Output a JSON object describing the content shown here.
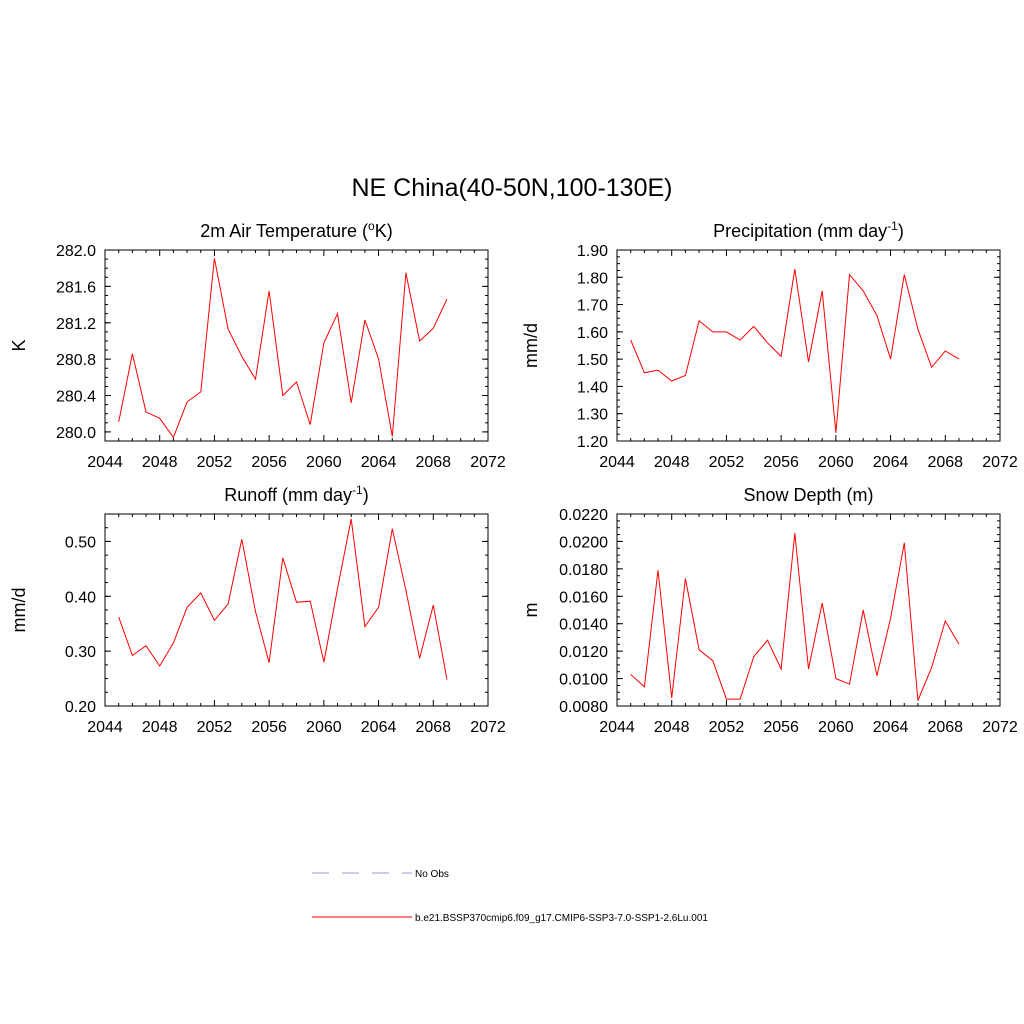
{
  "figure": {
    "title": "NE China(40-50N,100-130E)"
  },
  "colors": {
    "series": "#ff0000",
    "obs": "#9999dd",
    "axis": "#000000"
  },
  "legend": {
    "entries": [
      {
        "label": "No Obs",
        "style": "dashed",
        "color": "#9999dd"
      },
      {
        "label": "b.e21.BSSP370cmip6.f09_g17.CMIP6-SSP3-7.0-SSP1-2.6Lu.001",
        "style": "solid",
        "color": "#ff0000"
      }
    ]
  },
  "chart_data": [
    {
      "type": "line",
      "title_parts": [
        "2m Air Temperature (",
        "o",
        "K)"
      ],
      "title_style": "sup",
      "ylabel": "K",
      "xlim": [
        2044,
        2072
      ],
      "xticks": [
        2044,
        2048,
        2052,
        2056,
        2060,
        2064,
        2068,
        2072
      ],
      "ylim": [
        279.9,
        282.0
      ],
      "yticks": [
        280.0,
        280.4,
        280.8,
        281.2,
        281.6,
        282.0
      ],
      "ytick_labels": [
        "280.0",
        "280.4",
        "280.8",
        "281.2",
        "281.6",
        "282.0"
      ],
      "yminor": 0.1,
      "x": [
        2045,
        2046,
        2047,
        2048,
        2049,
        2050,
        2051,
        2052,
        2053,
        2054,
        2055,
        2056,
        2057,
        2058,
        2059,
        2060,
        2061,
        2062,
        2063,
        2064,
        2065,
        2066,
        2067,
        2068,
        2069
      ],
      "values": [
        280.11,
        280.86,
        280.22,
        280.15,
        279.94,
        280.33,
        280.44,
        281.91,
        281.13,
        280.83,
        280.58,
        281.55,
        280.4,
        280.55,
        280.08,
        280.98,
        281.3,
        280.32,
        281.23,
        280.8,
        279.95,
        281.75,
        281.0,
        281.14,
        281.46
      ]
    },
    {
      "type": "line",
      "title_parts": [
        "Precipitation (mm day",
        "-1",
        ")"
      ],
      "title_style": "sup",
      "ylabel": "mm/d",
      "xlim": [
        2044,
        2072
      ],
      "xticks": [
        2044,
        2048,
        2052,
        2056,
        2060,
        2064,
        2068,
        2072
      ],
      "ylim": [
        1.2,
        1.9
      ],
      "yticks": [
        1.2,
        1.3,
        1.4,
        1.5,
        1.6,
        1.7,
        1.8,
        1.9
      ],
      "ytick_labels": [
        "1.20",
        "1.30",
        "1.40",
        "1.50",
        "1.60",
        "1.70",
        "1.80",
        "1.90"
      ],
      "yminor": 0.025,
      "x": [
        2045,
        2046,
        2047,
        2048,
        2049,
        2050,
        2051,
        2052,
        2053,
        2054,
        2055,
        2056,
        2057,
        2058,
        2059,
        2060,
        2061,
        2062,
        2063,
        2064,
        2065,
        2066,
        2067,
        2068,
        2069
      ],
      "values": [
        1.57,
        1.45,
        1.46,
        1.42,
        1.44,
        1.64,
        1.6,
        1.6,
        1.57,
        1.62,
        1.56,
        1.51,
        1.83,
        1.49,
        1.75,
        1.23,
        1.81,
        1.75,
        1.66,
        1.5,
        1.81,
        1.61,
        1.47,
        1.53,
        1.5
      ]
    },
    {
      "type": "line",
      "title_parts": [
        "Runoff (mm day",
        "-1",
        ")"
      ],
      "title_style": "sup",
      "ylabel": "mm/d",
      "xlim": [
        2044,
        2072
      ],
      "xticks": [
        2044,
        2048,
        2052,
        2056,
        2060,
        2064,
        2068,
        2072
      ],
      "ylim": [
        0.2,
        0.55
      ],
      "yticks": [
        0.2,
        0.3,
        0.4,
        0.5
      ],
      "ytick_labels": [
        "0.20",
        "0.30",
        "0.40",
        "0.50"
      ],
      "yminor": 0.025,
      "x": [
        2045,
        2046,
        2047,
        2048,
        2049,
        2050,
        2051,
        2052,
        2053,
        2054,
        2055,
        2056,
        2057,
        2058,
        2059,
        2060,
        2061,
        2062,
        2063,
        2064,
        2065,
        2066,
        2067,
        2068,
        2069
      ],
      "values": [
        0.362,
        0.292,
        0.31,
        0.273,
        0.315,
        0.38,
        0.406,
        0.356,
        0.386,
        0.504,
        0.372,
        0.279,
        0.47,
        0.389,
        0.391,
        0.28,
        0.414,
        0.541,
        0.345,
        0.38,
        0.523,
        0.411,
        0.287,
        0.384,
        0.248
      ]
    },
    {
      "type": "line",
      "title_parts": [
        "Snow Depth (m)"
      ],
      "title_style": "plain",
      "ylabel": "m",
      "xlim": [
        2044,
        2072
      ],
      "xticks": [
        2044,
        2048,
        2052,
        2056,
        2060,
        2064,
        2068,
        2072
      ],
      "ylim": [
        0.008,
        0.022
      ],
      "yticks": [
        0.008,
        0.01,
        0.012,
        0.014,
        0.016,
        0.018,
        0.02,
        0.022
      ],
      "ytick_labels": [
        "0.0080",
        "0.0100",
        "0.0120",
        "0.0140",
        "0.0160",
        "0.0180",
        "0.0200",
        "0.0220"
      ],
      "yminor": 0.0005,
      "x": [
        2045,
        2046,
        2047,
        2048,
        2049,
        2050,
        2051,
        2052,
        2053,
        2054,
        2055,
        2056,
        2057,
        2058,
        2059,
        2060,
        2061,
        2062,
        2063,
        2064,
        2065,
        2066,
        2067,
        2068,
        2069
      ],
      "values": [
        0.0103,
        0.0094,
        0.0179,
        0.0086,
        0.0173,
        0.0121,
        0.0113,
        0.0085,
        0.0085,
        0.0116,
        0.0128,
        0.0107,
        0.0206,
        0.0107,
        0.0155,
        0.01,
        0.0096,
        0.015,
        0.0102,
        0.0144,
        0.0199,
        0.0084,
        0.0108,
        0.0142,
        0.0125
      ]
    }
  ]
}
